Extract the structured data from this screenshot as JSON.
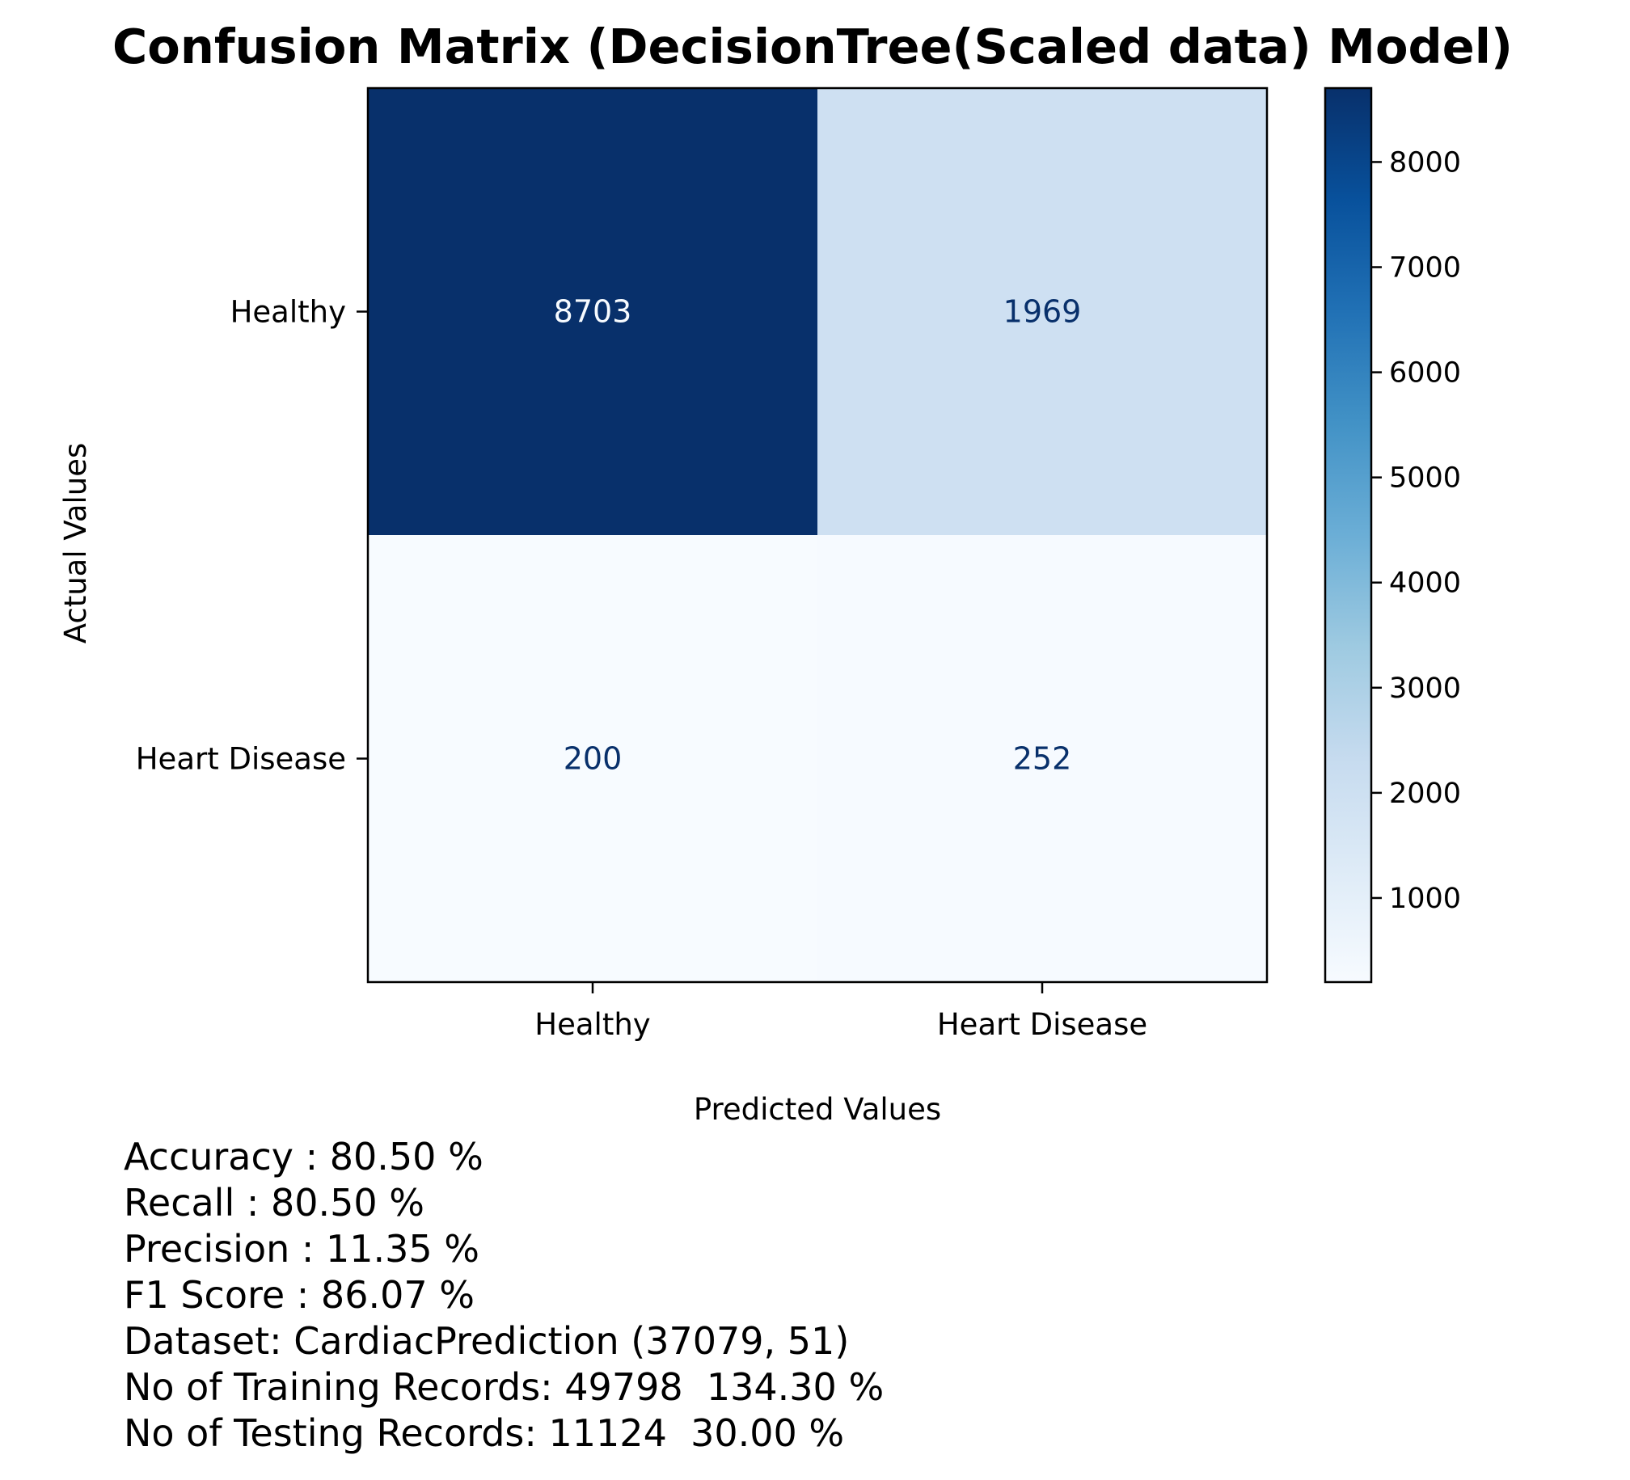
{
  "chart_data": {
    "type": "heatmap",
    "title": "Confusion Matrix (DecisionTree(Scaled data) Model)",
    "xlabel": "Predicted Values",
    "ylabel": "Actual Values",
    "x_categories": [
      "Healthy",
      "Heart Disease"
    ],
    "y_categories": [
      "Healthy",
      "Heart Disease"
    ],
    "matrix": [
      [
        8703,
        1969
      ],
      [
        200,
        252
      ]
    ],
    "colormap": "Blues",
    "colorbar": {
      "range": [
        200,
        8703
      ],
      "ticks": [
        1000,
        2000,
        3000,
        4000,
        5000,
        6000,
        7000,
        8000
      ],
      "tick_labels": [
        "1000",
        "2000",
        "3000",
        "4000",
        "5000",
        "6000",
        "7000",
        "8000"
      ]
    }
  },
  "stats": [
    "Accuracy : 80.50 %",
    "Recall : 80.50 %",
    "Precision : 11.35 %",
    "F1 Score : 86.07 %",
    "Dataset: CardiacPrediction (37079, 51)",
    "No of Training Records: 49798  134.30 %",
    "No of Testing Records: 11124  30.00 %"
  ]
}
